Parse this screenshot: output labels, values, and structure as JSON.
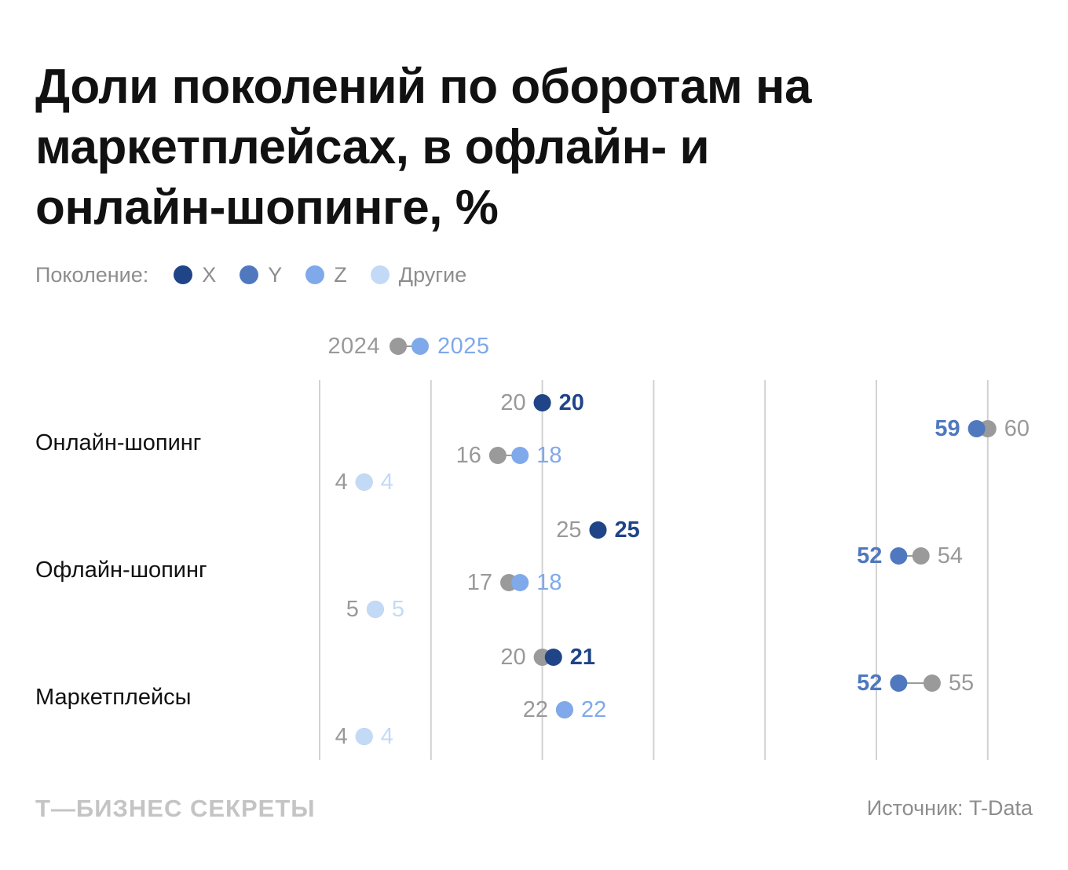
{
  "title": "Доли поколений по оборотам на маркетплейсах, в офлайн- и онлайн-шопинге, %",
  "legend": {
    "label": "Поколение:",
    "items": [
      {
        "name": "X",
        "color": "#1f4488"
      },
      {
        "name": "Y",
        "color": "#4f78bf"
      },
      {
        "name": "Z",
        "color": "#7fa9ea"
      },
      {
        "name": "Другие",
        "color": "#c3daf7"
      }
    ]
  },
  "colors": {
    "prev": "#9a9a9a",
    "prev_text": "#999999",
    "grid": "#d2d2d2",
    "category_text": "#111111"
  },
  "chart_data": {
    "type": "dumbbell",
    "years": {
      "from": "2024",
      "to": "2025"
    },
    "xlim": [
      0,
      60
    ],
    "categories": [
      "Онлайн-шопинг",
      "Офлайн-шопинг",
      "Маркетплейсы"
    ],
    "series": [
      {
        "name": "X",
        "values_2024": [
          20,
          25,
          20
        ],
        "values_2025": [
          20,
          25,
          21
        ]
      },
      {
        "name": "Y",
        "values_2024": [
          60,
          54,
          55
        ],
        "values_2025": [
          59,
          52,
          52
        ]
      },
      {
        "name": "Z",
        "values_2024": [
          16,
          17,
          22
        ],
        "values_2025": [
          18,
          18,
          22
        ]
      },
      {
        "name": "Другие",
        "values_2024": [
          4,
          5,
          4
        ],
        "values_2025": [
          4,
          5,
          4
        ]
      }
    ]
  },
  "footer": {
    "brand": "Т—БИЗНЕС СЕКРЕТЫ",
    "source": "Источник: T-Data"
  }
}
